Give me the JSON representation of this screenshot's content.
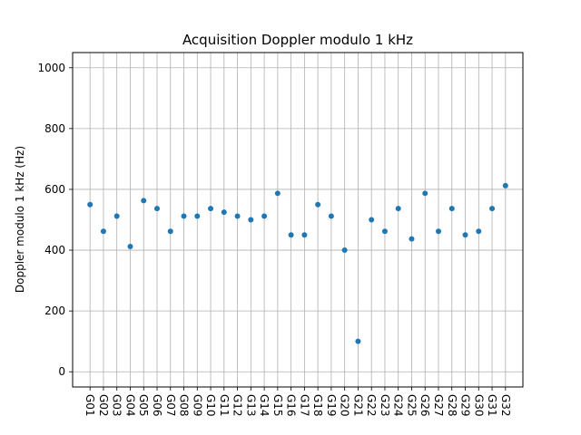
{
  "chart_data": {
    "type": "scatter",
    "title": "Acquisition Doppler modulo 1 kHz",
    "xlabel": "",
    "ylabel": "Doppler modulo 1 kHz (Hz)",
    "ylim": [
      -50,
      1050
    ],
    "yticks": [
      0,
      200,
      400,
      600,
      800,
      1000
    ],
    "grid": true,
    "marker_color": "#1f77b4",
    "categories": [
      "G01",
      "G02",
      "G03",
      "G04",
      "G05",
      "G06",
      "G07",
      "G08",
      "G09",
      "G10",
      "G11",
      "G12",
      "G13",
      "G14",
      "G15",
      "G16",
      "G17",
      "G18",
      "G19",
      "G20",
      "G21",
      "G22",
      "G23",
      "G24",
      "G25",
      "G26",
      "G27",
      "G28",
      "G29",
      "G30",
      "G31",
      "G32"
    ],
    "values": [
      550,
      462,
      512,
      412,
      563,
      537,
      462,
      512,
      512,
      537,
      525,
      512,
      500,
      512,
      587,
      450,
      450,
      550,
      512,
      400,
      100,
      500,
      462,
      537,
      437,
      587,
      462,
      537,
      450,
      462,
      537,
      612
    ]
  }
}
